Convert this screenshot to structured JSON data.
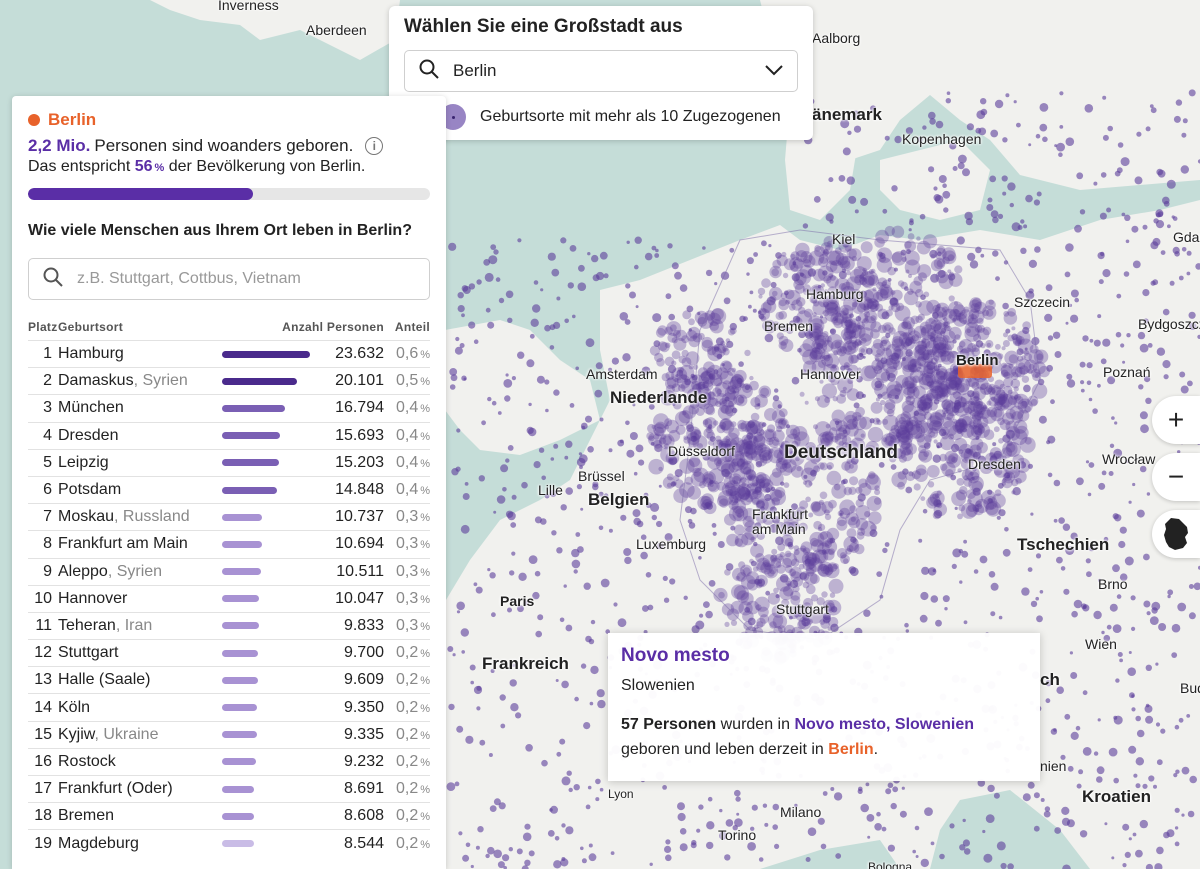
{
  "selector": {
    "title": "Wählen Sie eine Großstadt aus",
    "selected_city": "Berlin",
    "legend_text": "Geburtsorte mit mehr als 10 Zugezogenen"
  },
  "panel": {
    "city": "Berlin",
    "born_elsewhere_value": "2,2 Mio.",
    "born_elsewhere_text": "Personen sind woanders geboren.",
    "share_prefix": "Das entspricht",
    "share_value": "56",
    "share_suffix": "der Bevölkerung von Berlin.",
    "share_fraction": 0.56,
    "question": "Wie viele Menschen aus Ihrem Ort leben in Berlin?",
    "search_placeholder": "z.B. Stuttgart, Cottbus, Vietnam",
    "columns": {
      "pos": "Platz",
      "origin": "Geburtsort",
      "count": "Anzahl Personen",
      "share": "Anteil"
    },
    "rows": [
      {
        "pos": "1",
        "name": "Hamburg",
        "country": "",
        "value": "23.632",
        "share": "0,6",
        "n": 23632
      },
      {
        "pos": "2",
        "name": "Damaskus",
        "country": "Syrien",
        "value": "20.101",
        "share": "0,5",
        "n": 20101
      },
      {
        "pos": "3",
        "name": "München",
        "country": "",
        "value": "16.794",
        "share": "0,4",
        "n": 16794
      },
      {
        "pos": "4",
        "name": "Dresden",
        "country": "",
        "value": "15.693",
        "share": "0,4",
        "n": 15693
      },
      {
        "pos": "5",
        "name": "Leipzig",
        "country": "",
        "value": "15.203",
        "share": "0,4",
        "n": 15203
      },
      {
        "pos": "6",
        "name": "Potsdam",
        "country": "",
        "value": "14.848",
        "share": "0,4",
        "n": 14848
      },
      {
        "pos": "7",
        "name": "Moskau",
        "country": "Russland",
        "value": "10.737",
        "share": "0,3",
        "n": 10737
      },
      {
        "pos": "8",
        "name": "Frankfurt am Main",
        "country": "",
        "value": "10.694",
        "share": "0,3",
        "n": 10694
      },
      {
        "pos": "9",
        "name": "Aleppo",
        "country": "Syrien",
        "value": "10.511",
        "share": "0,3",
        "n": 10511
      },
      {
        "pos": "10",
        "name": "Hannover",
        "country": "",
        "value": "10.047",
        "share": "0,3",
        "n": 10047
      },
      {
        "pos": "11",
        "name": "Teheran",
        "country": "Iran",
        "value": "9.833",
        "share": "0,3",
        "n": 9833
      },
      {
        "pos": "12",
        "name": "Stuttgart",
        "country": "",
        "value": "9.700",
        "share": "0,2",
        "n": 9700
      },
      {
        "pos": "13",
        "name": "Halle (Saale)",
        "country": "",
        "value": "9.609",
        "share": "0,2",
        "n": 9609
      },
      {
        "pos": "14",
        "name": "Köln",
        "country": "",
        "value": "9.350",
        "share": "0,2",
        "n": 9350
      },
      {
        "pos": "15",
        "name": "Kyjiw",
        "country": "Ukraine",
        "value": "9.335",
        "share": "0,2",
        "n": 9335
      },
      {
        "pos": "16",
        "name": "Rostock",
        "country": "",
        "value": "9.232",
        "share": "0,2",
        "n": 9232
      },
      {
        "pos": "17",
        "name": "Frankfurt (Oder)",
        "country": "",
        "value": "8.691",
        "share": "0,2",
        "n": 8691
      },
      {
        "pos": "18",
        "name": "Bremen",
        "country": "",
        "value": "8.608",
        "share": "0,2",
        "n": 8608
      },
      {
        "pos": "19",
        "name": "Magdeburg",
        "country": "",
        "value": "8.544",
        "share": "0,2",
        "n": 8544
      }
    ]
  },
  "tooltip": {
    "place": "Novo mesto",
    "country": "Slowenien",
    "count_text": "57 Personen",
    "mid1": "wurden in",
    "place_full": "Novo mesto, Slowenien",
    "mid2": "geboren und leben derzeit in",
    "city": "Berlin",
    "end": "."
  },
  "map": {
    "labels": {
      "inverness": "Inverness",
      "aberdeen": "Aberdeen",
      "aalborg": "Aalborg",
      "danemark": "änemark",
      "kopenhagen": "Kopenhagen",
      "gdansk": "Gdar",
      "kiel": "Kiel",
      "hamburg": "Hamburg",
      "bremen": "Bremen",
      "szczecin": "Szczecin",
      "bydgoszcz": "Bydgoszcz",
      "amsterdam": "Amsterdam",
      "niederlande": "Niederlande",
      "hannover": "Hannover",
      "berlin": "Berlin",
      "poznan": "Poznań",
      "duesseldorf": "Düsseldorf",
      "deutschland": "Deutschland",
      "bruessel": "Brüssel",
      "belgien": "Belgien",
      "lille": "Lille",
      "dresden": "Dresden",
      "wroclaw": "Wrocław",
      "frankfurt": "Frankfurt\nam Main",
      "luxemburg": "Luxemburg",
      "tschechien": "Tschechien",
      "brno": "Brno",
      "paris": "Paris",
      "stuttgart": "Stuttgart",
      "frankreich": "Frankreich",
      "wien": "Wien",
      "ch": "ch",
      "bud": "Bud",
      "lyon": "Lyon",
      "milano": "Milano",
      "torino": "Torino",
      "kroatien": "Kroatien",
      "nien": "nien",
      "bologna": "Bologna"
    },
    "colors": {
      "water": "#c5ddd8",
      "land": "#f1f1ee",
      "dot": "#5b3d9b",
      "berlin": "#e8622a"
    }
  },
  "controls": {
    "zoom_in": "+",
    "zoom_out": "−"
  }
}
